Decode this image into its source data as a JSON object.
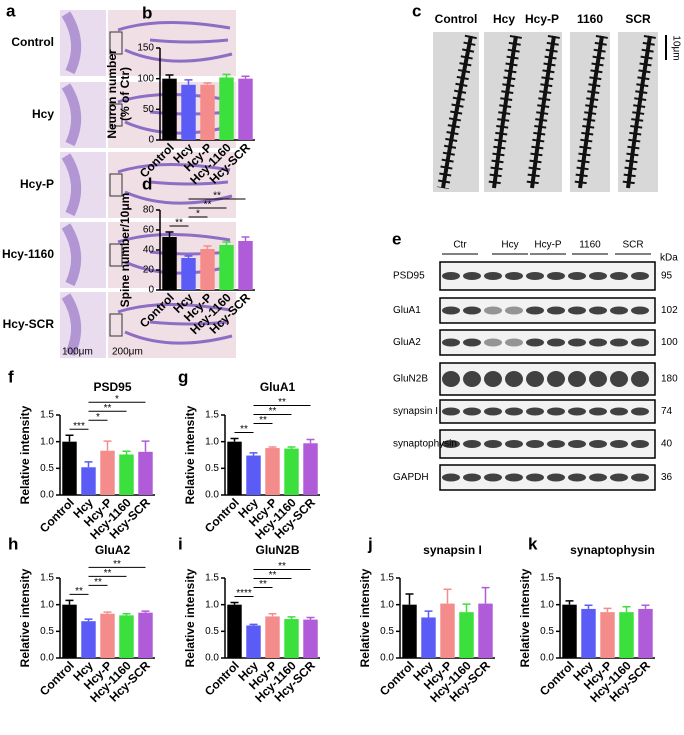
{
  "histology": {
    "panel": "a",
    "rows": [
      "Control",
      "Hcy",
      "Hcy-P",
      "Hcy-1160",
      "Hcy-SCR"
    ],
    "scale_bars": [
      "100μm",
      "200μm"
    ]
  },
  "spines": {
    "panel": "c",
    "groups": [
      "Control",
      "Hcy",
      "Hcy-P",
      "1160",
      "SCR"
    ],
    "scale_bar": "10μm"
  },
  "western": {
    "panel": "e",
    "groups": [
      "Ctr",
      "Hcy",
      "Hcy-P",
      "1160",
      "SCR"
    ],
    "unit": "kDa",
    "rows": [
      {
        "protein": "PSD95",
        "kda": 95
      },
      {
        "protein": "GluA1",
        "kda": 102
      },
      {
        "protein": "GluA2",
        "kda": 100
      },
      {
        "protein": "GluN2B",
        "kda": 180
      },
      {
        "protein": "synapsin I",
        "kda": 74
      },
      {
        "protein": "synaptophysin",
        "kda": 40
      },
      {
        "protein": "GAPDH",
        "kda": 36
      }
    ]
  },
  "chart_data": [
    {
      "type": "bar",
      "panel": "b",
      "ylabel": [
        "Neuron number",
        "(% of Ctr)"
      ],
      "categories": [
        "Control",
        "Hcy",
        "Hcy-P",
        "Hcy-1160",
        "Hcy-SCR"
      ],
      "values": [
        100,
        90,
        90,
        102,
        100
      ],
      "errors": [
        6,
        8,
        3,
        5,
        4
      ],
      "colors": [
        "#000000",
        "#5b5bf5",
        "#f58c8c",
        "#3ce03c",
        "#b05cd8"
      ],
      "ylim": [
        0,
        150
      ],
      "yticks": [
        0,
        50,
        100,
        150
      ],
      "annotations": []
    },
    {
      "type": "bar",
      "panel": "d",
      "ylabel": [
        "Spine number/10μm"
      ],
      "categories": [
        "Control",
        "Hcy",
        "Hcy-P",
        "Hcy-1160",
        "Hcy-SCR"
      ],
      "values": [
        53,
        32,
        41,
        45,
        49
      ],
      "errors": [
        5,
        2,
        3,
        3,
        4
      ],
      "colors": [
        "#000000",
        "#5b5bf5",
        "#f58c8c",
        "#3ce03c",
        "#b05cd8"
      ],
      "ylim": [
        0,
        80
      ],
      "yticks": [
        0,
        20,
        40,
        60,
        80
      ],
      "annotations": [
        {
          "label": "**",
          "between": [
            "Control",
            "Hcy"
          ]
        },
        {
          "label": "*",
          "between": [
            "Hcy",
            "Hcy-P"
          ]
        },
        {
          "label": "**",
          "between": [
            "Hcy",
            "Hcy-1160"
          ]
        },
        {
          "label": "**",
          "between": [
            "Hcy",
            "Hcy-SCR"
          ]
        }
      ]
    },
    {
      "type": "bar",
      "panel": "f",
      "title": "PSD95",
      "ylabel": [
        "Relative intensity"
      ],
      "categories": [
        "Control",
        "Hcy",
        "Hcy-P",
        "Hcy-1160",
        "Hcy-SCR"
      ],
      "values": [
        1.0,
        0.52,
        0.83,
        0.76,
        0.81
      ],
      "errors": [
        0.12,
        0.1,
        0.18,
        0.06,
        0.2
      ],
      "colors": [
        "#000000",
        "#5b5bf5",
        "#f58c8c",
        "#3ce03c",
        "#b05cd8"
      ],
      "ylim": [
        0,
        1.5
      ],
      "yticks": [
        {
          "value": 0,
          "label": "0.0"
        },
        0.5,
        {
          "value": 1,
          "label": "1.0"
        },
        1.5
      ],
      "annotations": [
        {
          "label": "***",
          "between": [
            "Control",
            "Hcy"
          ]
        },
        {
          "label": "*",
          "between": [
            "Hcy",
            "Hcy-P"
          ]
        },
        {
          "label": "**",
          "between": [
            "Hcy",
            "Hcy-1160"
          ]
        },
        {
          "label": "*",
          "between": [
            "Hcy",
            "Hcy-SCR"
          ]
        }
      ]
    },
    {
      "type": "bar",
      "panel": "g",
      "title": "GluA1",
      "ylabel": [
        "Relative intensity"
      ],
      "categories": [
        "Control",
        "Hcy",
        "Hcy-P",
        "Hcy-1160",
        "Hcy-SCR"
      ],
      "values": [
        1.0,
        0.74,
        0.88,
        0.87,
        0.97
      ],
      "errors": [
        0.06,
        0.05,
        0.02,
        0.03,
        0.07
      ],
      "colors": [
        "#000000",
        "#5b5bf5",
        "#f58c8c",
        "#3ce03c",
        "#b05cd8"
      ],
      "ylim": [
        0,
        1.5
      ],
      "yticks": [
        {
          "value": 0,
          "label": "0.0"
        },
        0.5,
        {
          "value": 1,
          "label": "1.0"
        },
        1.5
      ],
      "annotations": [
        {
          "label": "**",
          "between": [
            "Control",
            "Hcy"
          ]
        },
        {
          "label": "**",
          "between": [
            "Hcy",
            "Hcy-P"
          ]
        },
        {
          "label": "**",
          "between": [
            "Hcy",
            "Hcy-1160"
          ]
        },
        {
          "label": "**",
          "between": [
            "Hcy",
            "Hcy-SCR"
          ]
        }
      ]
    },
    {
      "type": "bar",
      "panel": "h",
      "title": "GluA2",
      "ylabel": [
        "Relative intensity"
      ],
      "categories": [
        "Control",
        "Hcy",
        "Hcy-P",
        "Hcy-1160",
        "Hcy-SCR"
      ],
      "values": [
        1.0,
        0.69,
        0.83,
        0.8,
        0.85
      ],
      "errors": [
        0.08,
        0.04,
        0.03,
        0.03,
        0.03
      ],
      "colors": [
        "#000000",
        "#5b5bf5",
        "#f58c8c",
        "#3ce03c",
        "#b05cd8"
      ],
      "ylim": [
        0,
        1.5
      ],
      "yticks": [
        {
          "value": 0,
          "label": "0.0"
        },
        0.5,
        {
          "value": 1,
          "label": "1.0"
        },
        1.5
      ],
      "annotations": [
        {
          "label": "**",
          "between": [
            "Control",
            "Hcy"
          ]
        },
        {
          "label": "**",
          "between": [
            "Hcy",
            "Hcy-P"
          ]
        },
        {
          "label": "**",
          "between": [
            "Hcy",
            "Hcy-1160"
          ]
        },
        {
          "label": "**",
          "between": [
            "Hcy",
            "Hcy-SCR"
          ]
        }
      ]
    },
    {
      "type": "bar",
      "panel": "i",
      "title": "GluN2B",
      "ylabel": [
        "Relative intensity"
      ],
      "categories": [
        "Control",
        "Hcy",
        "Hcy-P",
        "Hcy-1160",
        "Hcy-SCR"
      ],
      "values": [
        1.0,
        0.61,
        0.78,
        0.73,
        0.72
      ],
      "errors": [
        0.04,
        0.02,
        0.05,
        0.04,
        0.04
      ],
      "colors": [
        "#000000",
        "#5b5bf5",
        "#f58c8c",
        "#3ce03c",
        "#b05cd8"
      ],
      "ylim": [
        0,
        1.5
      ],
      "yticks": [
        {
          "value": 0,
          "label": "0.0"
        },
        0.5,
        {
          "value": 1,
          "label": "1.0"
        },
        1.5
      ],
      "annotations": [
        {
          "label": "****",
          "between": [
            "Control",
            "Hcy"
          ]
        },
        {
          "label": "**",
          "between": [
            "Hcy",
            "Hcy-P"
          ]
        },
        {
          "label": "**",
          "between": [
            "Hcy",
            "Hcy-1160"
          ]
        },
        {
          "label": "**",
          "between": [
            "Hcy",
            "Hcy-SCR"
          ]
        }
      ]
    },
    {
      "type": "bar",
      "panel": "j",
      "title": "synapsin I",
      "ylabel": [
        "Relative intensity"
      ],
      "categories": [
        "Control",
        "Hcy",
        "Hcy-P",
        "Hcy-1160",
        "Hcy-SCR"
      ],
      "values": [
        1.0,
        0.76,
        1.02,
        0.86,
        1.02
      ],
      "errors": [
        0.2,
        0.12,
        0.27,
        0.15,
        0.3
      ],
      "colors": [
        "#000000",
        "#5b5bf5",
        "#f58c8c",
        "#3ce03c",
        "#b05cd8"
      ],
      "ylim": [
        0,
        1.5
      ],
      "yticks": [
        {
          "value": 0,
          "label": "0.0"
        },
        0.5,
        {
          "value": 1,
          "label": "1.0"
        },
        1.5
      ],
      "annotations": []
    },
    {
      "type": "bar",
      "panel": "k",
      "title": "synaptophysin",
      "ylabel": [
        "Relative intensity"
      ],
      "categories": [
        "Control",
        "Hcy",
        "Hcy-P",
        "Hcy-1160",
        "Hcy-SCR"
      ],
      "values": [
        1.0,
        0.92,
        0.86,
        0.86,
        0.92
      ],
      "errors": [
        0.07,
        0.07,
        0.07,
        0.1,
        0.07
      ],
      "colors": [
        "#000000",
        "#5b5bf5",
        "#f58c8c",
        "#3ce03c",
        "#b05cd8"
      ],
      "ylim": [
        0,
        1.5
      ],
      "yticks": [
        {
          "value": 0,
          "label": "0.0"
        },
        0.5,
        {
          "value": 1,
          "label": "1.0"
        },
        1.5
      ],
      "annotations": []
    }
  ]
}
